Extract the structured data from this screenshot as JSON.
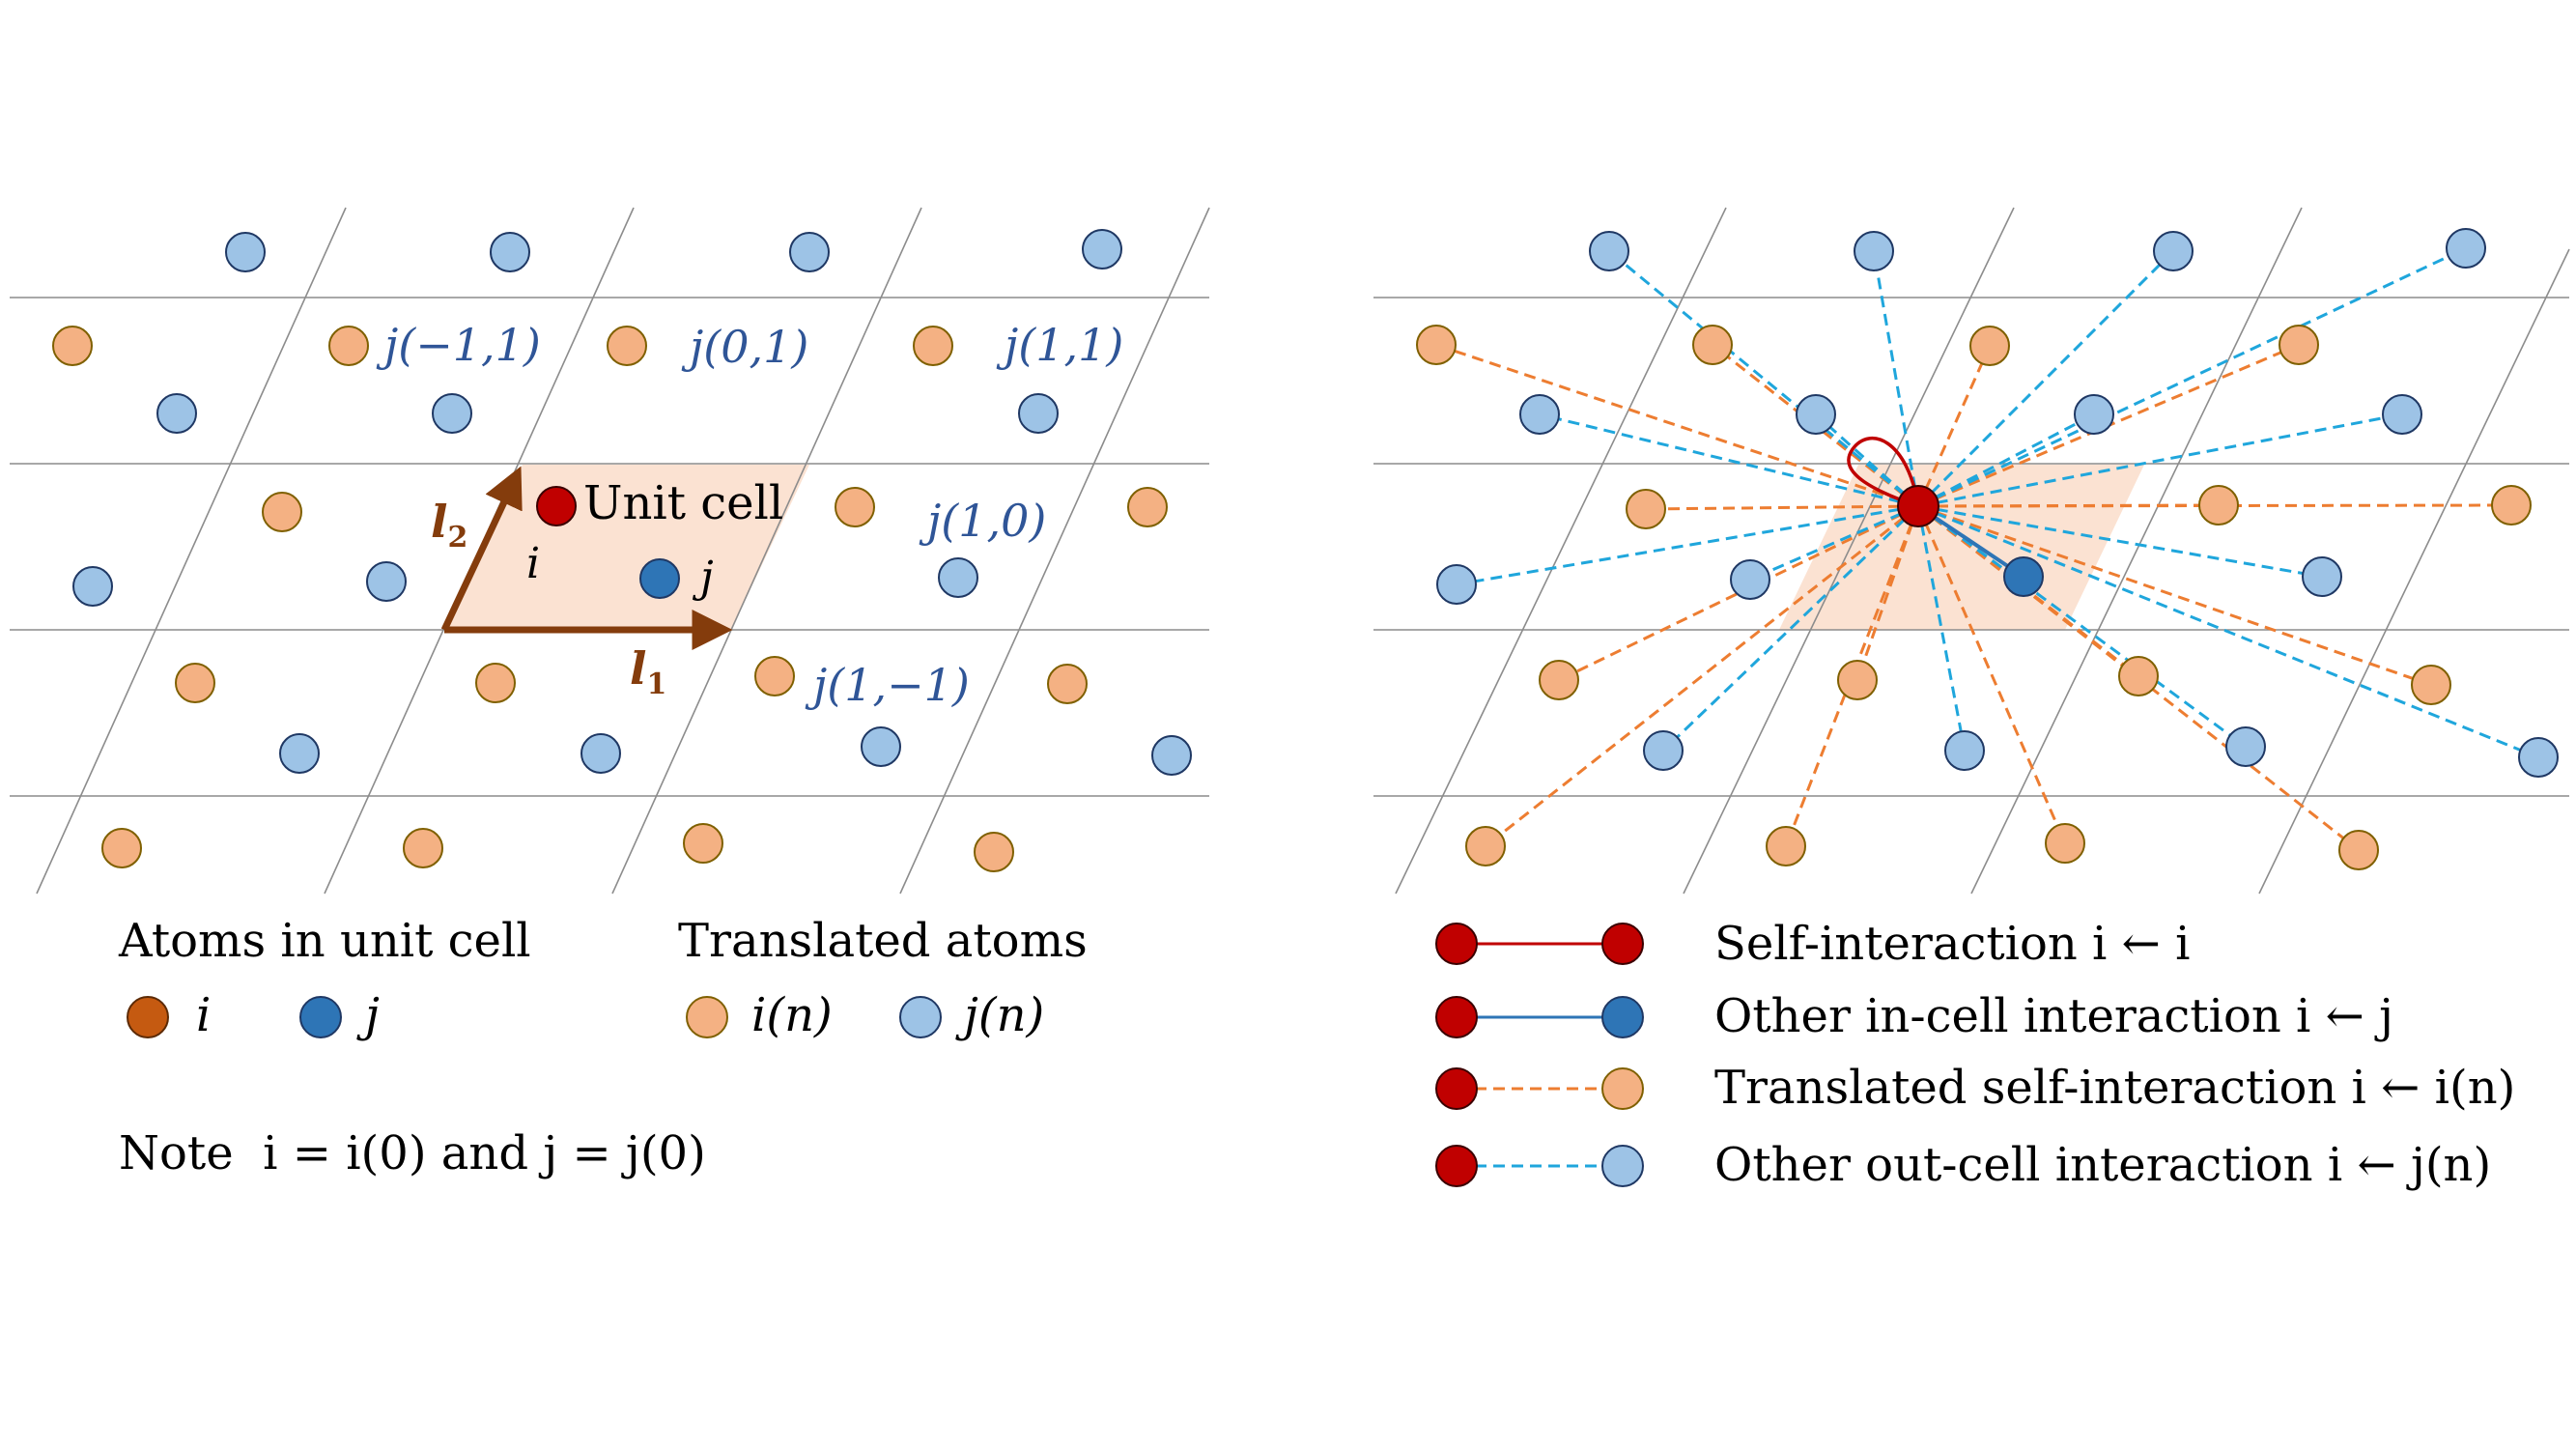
{
  "left_panel": {
    "unit_cell_label": "Unit cell",
    "atom_i_label": "i",
    "atom_j_label": "j",
    "vector_l1": "l",
    "vector_l1_sub": "1",
    "vector_l2": "l",
    "vector_l2_sub": "2",
    "neighbor_labels": [
      "j(−1,1)",
      "j(0,1)",
      "j(1,1)",
      "j(1,0)",
      "j(1,−1)"
    ],
    "legend": {
      "in_cell_title": "Atoms in unit cell",
      "in_cell_i": "i",
      "in_cell_j": "j",
      "translated_title": "Translated atoms",
      "translated_i": "i(n)",
      "translated_j": "j(n)"
    },
    "note": "Note  i = i(0) and j = j(0)"
  },
  "right_panel": {
    "legend": [
      "Self-interaction i ← i",
      "Other in-cell interaction i ← j",
      "Translated self-interaction i ← i(n)",
      "Other out-cell interaction i ← j(n)"
    ]
  },
  "colors": {
    "atom_i_in_cell": "#c55a11",
    "atom_j_in_cell": "#2e75b6",
    "atom_i_translated": "#f4b183",
    "atom_j_translated": "#9dc3e6",
    "reference_atom": "#c00000",
    "vector_arrow": "#843c0c",
    "unit_cell_fill": "#f8cbad",
    "label_blue": "#2f5597",
    "self_line": "#c00000",
    "in_cell_line": "#2e75b6",
    "translated_self_line": "#ed7d31",
    "out_cell_line": "#1fa6dc"
  }
}
